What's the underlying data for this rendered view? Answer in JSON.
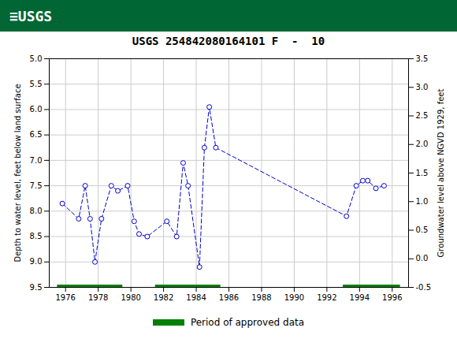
{
  "chart_data": {
    "type": "line",
    "title": "USGS 254842080164101 F  -  10",
    "annotations": [
      "≡USGS"
    ],
    "x": [
      1975.8,
      1976.8,
      1977.2,
      1977.5,
      1977.8,
      1978.2,
      1978.8,
      1979.2,
      1979.8,
      1980.2,
      1980.5,
      1981.0,
      1982.2,
      1982.8,
      1983.2,
      1983.5,
      1984.2,
      1984.5,
      1984.8,
      1985.2,
      1993.2,
      1993.8,
      1994.2,
      1994.5,
      1995.0,
      1995.5
    ],
    "values": [
      7.85,
      8.15,
      7.5,
      8.15,
      9.0,
      8.15,
      7.5,
      7.6,
      7.5,
      8.2,
      8.45,
      8.5,
      8.2,
      8.5,
      7.05,
      7.5,
      9.1,
      6.75,
      5.95,
      6.75,
      8.1,
      7.5,
      7.4,
      7.4,
      7.55,
      7.5
    ],
    "color": "#0000cc",
    "marker": "circle",
    "line_style": "dashed",
    "ylabel": "Depth to water level, feet below land surface",
    "y2label": "Groundwater level above NGVD 1929, feet",
    "xlim": [
      1975,
      1997
    ],
    "xticks": [
      1976,
      1978,
      1980,
      1982,
      1984,
      1986,
      1988,
      1990,
      1992,
      1994,
      1996
    ],
    "ylim": [
      9.5,
      5.0
    ],
    "yticks": [
      {
        "value": 5,
        "label": "5.0"
      },
      5.5,
      {
        "value": 6,
        "label": "6.0"
      },
      6.5,
      {
        "value": 7,
        "label": "7.0"
      },
      7.5,
      {
        "value": 8,
        "label": "8.0"
      },
      8.5,
      {
        "value": 9,
        "label": "9.0"
      },
      9.5
    ],
    "y2lim": [
      -0.5,
      3.5
    ],
    "y2ticks": [
      3.5,
      {
        "value": 3,
        "label": "3.0"
      },
      2.5,
      {
        "value": 2,
        "label": "2.0"
      },
      1.5,
      {
        "value": 1,
        "label": "1.0"
      },
      0.5,
      {
        "value": 0,
        "label": "0.0"
      },
      -0.5
    ],
    "grid": true,
    "approved_periods": {
      "name": "Period of approved data",
      "color": "#008000",
      "y": 9.5,
      "ranges": [
        [
          1975.5,
          1979.5
        ],
        [
          1981.5,
          1985.5
        ],
        [
          1993.0,
          1996.5
        ]
      ]
    }
  }
}
